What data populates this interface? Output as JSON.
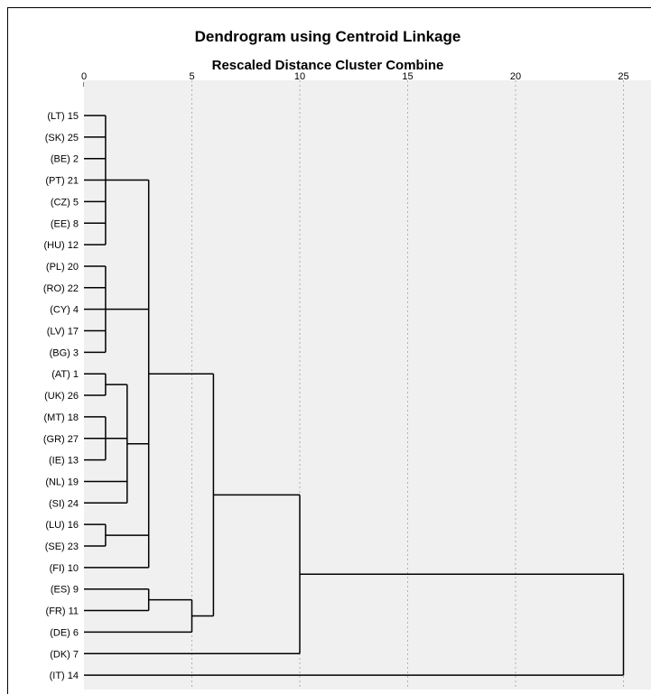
{
  "chart_data": {
    "type": "dendrogram",
    "title": "Dendrogram using Centroid Linkage",
    "subtitle": "Rescaled Distance Cluster Combine",
    "x_axis": {
      "ticks": [
        0,
        5,
        10,
        15,
        20,
        25
      ],
      "range": [
        0,
        26.2
      ]
    },
    "grid": true,
    "colors": {
      "plot_background": "#f0f0f0",
      "grid": "#b0b0b0",
      "lines": "#000000"
    },
    "leaves": [
      "(LT) 15",
      "(SK) 25",
      "(BE) 2",
      "(PT) 21",
      "(CZ) 5",
      "(EE) 8",
      "(HU) 12",
      "(PL) 20",
      "(RO) 22",
      "(CY) 4",
      "(LV) 17",
      "(BG) 3",
      "(AT) 1",
      "(UK) 26",
      "(MT) 18",
      "(GR) 27",
      "(IE) 13",
      "(NL) 19",
      "(SI) 24",
      "(LU) 16",
      "(SE) 23",
      "(FI) 10",
      "(ES) 9",
      "(FR) 11",
      "(DE) 6",
      "(DK) 7",
      "(IT) 14"
    ],
    "merges": [
      {
        "id": "A",
        "height": 1,
        "children": [
          "(LT) 15",
          "(SK) 25",
          "(BE) 2",
          "(PT) 21",
          "(CZ) 5",
          "(EE) 8",
          "(HU) 12"
        ]
      },
      {
        "id": "B",
        "height": 1,
        "children": [
          "(PL) 20",
          "(RO) 22",
          "(CY) 4",
          "(LV) 17",
          "(BG) 3"
        ]
      },
      {
        "id": "C",
        "height": 1,
        "children": [
          "(AT) 1",
          "(UK) 26"
        ]
      },
      {
        "id": "D",
        "height": 1,
        "children": [
          "(MT) 18",
          "(GR) 27",
          "(IE) 13"
        ]
      },
      {
        "id": "E",
        "height": 1,
        "children": [
          "(LU) 16",
          "(SE) 23"
        ]
      },
      {
        "id": "F",
        "height": 2,
        "children": [
          "C",
          "D",
          "(NL) 19",
          "(SI) 24"
        ]
      },
      {
        "id": "G",
        "height": 3,
        "children": [
          "A",
          "B",
          "F",
          "E",
          "(FI) 10"
        ]
      },
      {
        "id": "H",
        "height": 3,
        "children": [
          "(ES) 9",
          "(FR) 11"
        ]
      },
      {
        "id": "I",
        "height": 5,
        "children": [
          "H",
          "(DE) 6"
        ]
      },
      {
        "id": "J",
        "height": 6,
        "children": [
          "G",
          "I"
        ]
      },
      {
        "id": "K",
        "height": 10,
        "children": [
          "J",
          "(DK) 7"
        ]
      },
      {
        "id": "L",
        "height": 25,
        "children": [
          "K",
          "(IT) 14"
        ]
      }
    ]
  }
}
